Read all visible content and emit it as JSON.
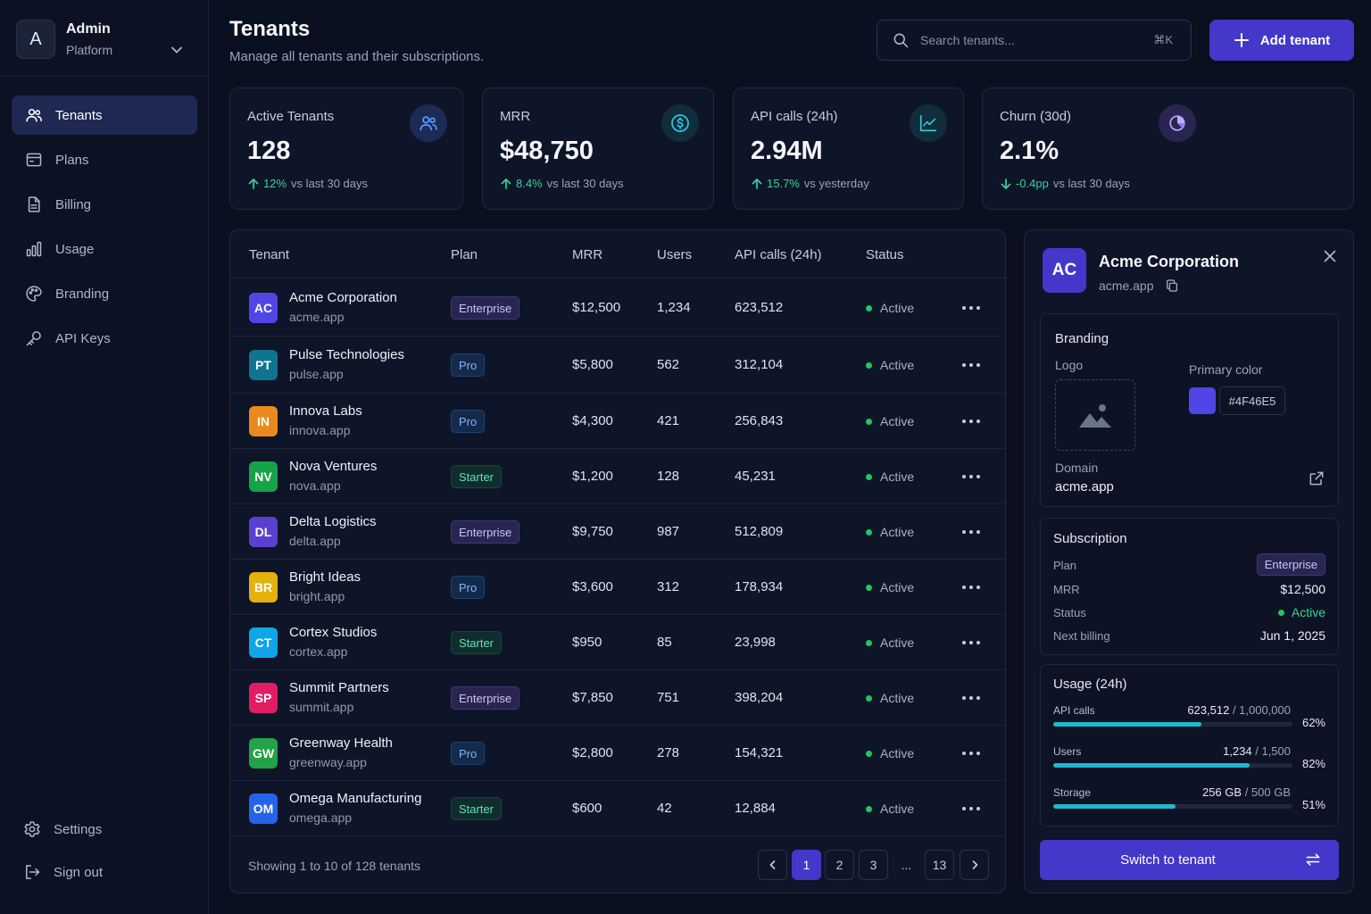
{
  "workspace": {
    "initial": "A",
    "name": "Admin",
    "subtitle": "Platform"
  },
  "nav": {
    "items": [
      {
        "label": "Tenants",
        "icon": "users-icon",
        "active": true
      },
      {
        "label": "Plans",
        "icon": "card-icon"
      },
      {
        "label": "Billing",
        "icon": "document-icon"
      },
      {
        "label": "Usage",
        "icon": "bar-chart-icon"
      },
      {
        "label": "Branding",
        "icon": "palette-icon"
      },
      {
        "label": "API Keys",
        "icon": "key-icon"
      }
    ],
    "bottom": [
      {
        "label": "Settings",
        "icon": "gear-icon"
      },
      {
        "label": "Sign out",
        "icon": "sign-out-icon"
      }
    ]
  },
  "header": {
    "title": "Tenants",
    "subtitle": "Manage all tenants and their subscriptions.",
    "search_placeholder": "Search tenants...",
    "search_shortcut": "⌘K",
    "add_label": "Add tenant"
  },
  "stats": [
    {
      "label": "Active Tenants",
      "value": "128",
      "delta": "12%",
      "direction": "up",
      "comparison": "vs last 30 days",
      "icon": "users-icon",
      "color": "#3b82f6"
    },
    {
      "label": "MRR",
      "value": "$48,750",
      "delta": "8.4%",
      "direction": "up",
      "comparison": "vs last 30 days",
      "icon": "dollar-icon",
      "color": "#22b8cf"
    },
    {
      "label": "API calls (24h)",
      "value": "2.94M",
      "delta": "15.7%",
      "direction": "up",
      "comparison": "vs yesterday",
      "icon": "trend-chart-icon",
      "color": "#22b8cf"
    },
    {
      "label": "Churn (30d)",
      "value": "2.1%",
      "delta": "-0.4pp",
      "direction": "down",
      "comparison": "vs last 30 days",
      "icon": "pie-chart-icon",
      "color": "#8b7cf6"
    }
  ],
  "table": {
    "columns": [
      "Tenant",
      "Plan",
      "MRR",
      "Users",
      "API calls (24h)",
      "Status"
    ],
    "rows": [
      {
        "initials": "AC",
        "color": "#4f46e5",
        "name": "Acme Corporation",
        "domain": "acme.app",
        "plan": "Enterprise",
        "mrr": "$12,500",
        "users": "1,234",
        "api": "623,512",
        "status": "Active"
      },
      {
        "initials": "PT",
        "color": "#0e7490",
        "name": "Pulse Technologies",
        "domain": "pulse.app",
        "plan": "Pro",
        "mrr": "$5,800",
        "users": "562",
        "api": "312,104",
        "status": "Active"
      },
      {
        "initials": "IN",
        "color": "#ea8a1e",
        "name": "Innova Labs",
        "domain": "innova.app",
        "plan": "Pro",
        "mrr": "$4,300",
        "users": "421",
        "api": "256,843",
        "status": "Active"
      },
      {
        "initials": "NV",
        "color": "#16a34a",
        "name": "Nova Ventures",
        "domain": "nova.app",
        "plan": "Starter",
        "mrr": "$1,200",
        "users": "128",
        "api": "45,231",
        "status": "Active"
      },
      {
        "initials": "DL",
        "color": "#5b3fd0",
        "name": "Delta Logistics",
        "domain": "delta.app",
        "plan": "Enterprise",
        "mrr": "$9,750",
        "users": "987",
        "api": "512,809",
        "status": "Active"
      },
      {
        "initials": "BR",
        "color": "#e5b20b",
        "name": "Bright Ideas",
        "domain": "bright.app",
        "plan": "Pro",
        "mrr": "$3,600",
        "users": "312",
        "api": "178,934",
        "status": "Active"
      },
      {
        "initials": "CT",
        "color": "#0ea5e9",
        "name": "Cortex Studios",
        "domain": "cortex.app",
        "plan": "Starter",
        "mrr": "$950",
        "users": "85",
        "api": "23,998",
        "status": "Active"
      },
      {
        "initials": "SP",
        "color": "#e11d63",
        "name": "Summit Partners",
        "domain": "summit.app",
        "plan": "Enterprise",
        "mrr": "$7,850",
        "users": "751",
        "api": "398,204",
        "status": "Active"
      },
      {
        "initials": "GW",
        "color": "#22a34a",
        "name": "Greenway Health",
        "domain": "greenway.app",
        "plan": "Pro",
        "mrr": "$2,800",
        "users": "278",
        "api": "154,321",
        "status": "Active"
      },
      {
        "initials": "OM",
        "color": "#2563eb",
        "name": "Omega Manufacturing",
        "domain": "omega.app",
        "plan": "Starter",
        "mrr": "$600",
        "users": "42",
        "api": "12,884",
        "status": "Active"
      }
    ],
    "footer": "Showing 1 to 10 of 128 tenants",
    "pages": [
      "1",
      "2",
      "3",
      "...",
      "13"
    ],
    "current_page": "1"
  },
  "detail": {
    "initials": "AC",
    "name": "Acme Corporation",
    "domain": "acme.app",
    "branding": {
      "title": "Branding",
      "logo_label": "Logo",
      "color_label": "Primary color",
      "color_hex": "#4F46E5",
      "domain_label": "Domain",
      "domain_value": "acme.app"
    },
    "subscription": {
      "title": "Subscription",
      "plan_label": "Plan",
      "plan_value": "Enterprise",
      "mrr_label": "MRR",
      "mrr_value": "$12,500",
      "status_label": "Status",
      "status_value": "Active",
      "billing_label": "Next billing",
      "billing_value": "Jun 1, 2025"
    },
    "usage": {
      "title": "Usage (24h)",
      "items": [
        {
          "label": "API calls",
          "used": "623,512",
          "limit": "/ 1,000,000",
          "percent": "62%",
          "fraction": 0.62
        },
        {
          "label": "Users",
          "used": "1,234",
          "limit": "/ 1,500",
          "percent": "82%",
          "fraction": 0.82
        },
        {
          "label": "Storage",
          "used": "256 GB",
          "limit": "/ 500 GB",
          "percent": "51%",
          "fraction": 0.51
        }
      ]
    },
    "switch_label": "Switch to tenant"
  }
}
